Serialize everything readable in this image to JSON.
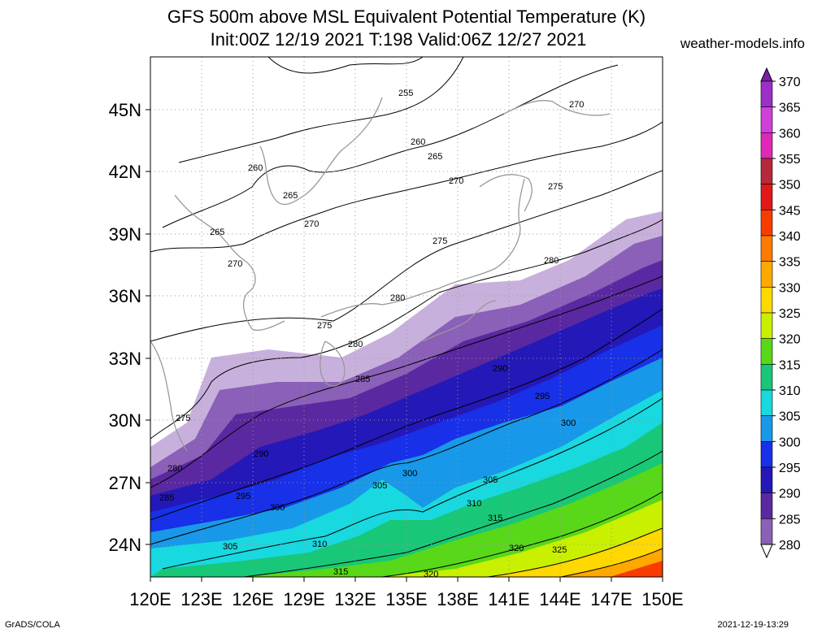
{
  "header": {
    "title_line1": "GFS 500m above MSL Equivalent Potential Temperature (K)",
    "title_line2": "Init:00Z 12/19 2021 T:198 Valid:06Z 12/27 2021",
    "site": "weather-models.info"
  },
  "axes": {
    "x_ticks": [
      "120E",
      "123E",
      "126E",
      "129E",
      "132E",
      "135E",
      "138E",
      "141E",
      "144E",
      "147E",
      "150E"
    ],
    "y_ticks": [
      "45N",
      "42N",
      "39N",
      "36N",
      "33N",
      "30N",
      "27N",
      "24N"
    ]
  },
  "colorbar": {
    "levels": [
      "370",
      "365",
      "360",
      "355",
      "350",
      "345",
      "340",
      "335",
      "330",
      "325",
      "320",
      "315",
      "310",
      "305",
      "300",
      "295",
      "290",
      "285",
      "280"
    ],
    "colors": [
      "#7a1fa8",
      "#9b30c8",
      "#d040d8",
      "#e028b8",
      "#b8283c",
      "#e01818",
      "#f83c00",
      "#ff7a00",
      "#ffa800",
      "#ffd800",
      "#c8f000",
      "#58d818",
      "#18c878",
      "#18d8e0",
      "#1898e8",
      "#1830e8",
      "#2418b8",
      "#5a28a0",
      "#8a60b8",
      "#c8b0dc"
    ]
  },
  "contour_labels": [
    "255",
    "260",
    "265",
    "270",
    "275",
    "280",
    "285",
    "290",
    "295",
    "300",
    "305",
    "310",
    "315",
    "320",
    "325"
  ],
  "footer": {
    "left": "GrADS/COLA",
    "right": "2021-12-19-13:29"
  }
}
